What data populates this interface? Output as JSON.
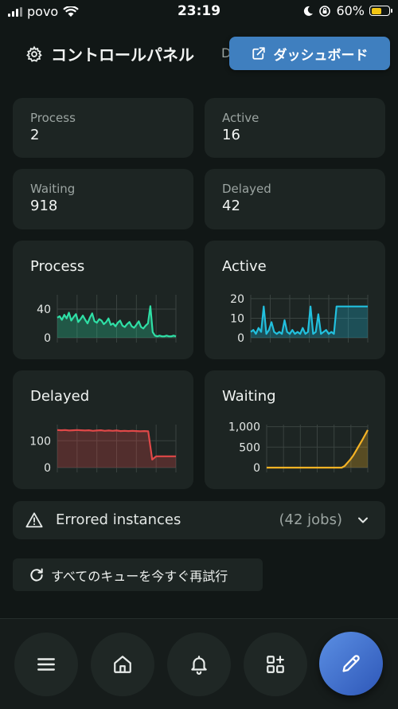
{
  "status_bar": {
    "carrier": "povo",
    "time": "23:19",
    "battery": "60%"
  },
  "header": {
    "title": "コントロールパネル",
    "hidden_tab_initial": "D",
    "dashboard_button": "ダッシュボード"
  },
  "stats": [
    {
      "label": "Process",
      "value": "2"
    },
    {
      "label": "Active",
      "value": "16"
    },
    {
      "label": "Waiting",
      "value": "918"
    },
    {
      "label": "Delayed",
      "value": "42"
    }
  ],
  "charts": {
    "process": {
      "title": "Process",
      "color": "#2fe0a6",
      "yticks": [
        "40",
        "0"
      ]
    },
    "active": {
      "title": "Active",
      "color": "#22c0de",
      "yticks": [
        "20",
        "10",
        "0"
      ]
    },
    "delayed": {
      "title": "Delayed",
      "color": "#e04848",
      "yticks": [
        "100",
        "0"
      ]
    },
    "waiting": {
      "title": "Waiting",
      "color": "#f5b325",
      "yticks": [
        "1,000",
        "500",
        "0"
      ]
    }
  },
  "chart_data": [
    {
      "type": "area",
      "title": "Process",
      "ylim": [
        0,
        60
      ],
      "y_ticks": [
        0,
        40
      ],
      "series": [
        {
          "values": [
            28,
            30,
            25,
            32,
            27,
            35,
            24,
            29,
            33,
            22,
            26,
            31,
            25,
            20,
            28,
            34,
            23,
            21,
            26,
            24,
            19,
            22,
            27,
            18,
            20,
            16,
            21,
            24,
            17,
            15,
            19,
            22,
            16,
            14,
            18,
            23,
            15,
            13,
            17,
            20,
            44,
            8,
            3,
            2,
            3,
            2,
            2,
            3,
            2,
            2,
            3,
            2
          ]
        }
      ]
    },
    {
      "type": "area",
      "title": "Active",
      "ylim": [
        0,
        22
      ],
      "y_ticks": [
        0,
        10,
        20
      ],
      "series": [
        {
          "values": [
            3,
            4,
            2,
            5,
            3,
            16,
            2,
            4,
            8,
            3,
            2,
            3,
            2,
            9,
            3,
            2,
            4,
            2,
            3,
            2,
            5,
            2,
            3,
            16,
            2,
            3,
            12,
            2,
            3,
            4,
            2,
            3,
            2,
            16,
            16,
            16,
            16,
            16,
            16,
            16,
            16,
            16,
            16,
            16,
            16,
            16
          ]
        }
      ]
    },
    {
      "type": "area",
      "title": "Delayed",
      "ylim": [
        0,
        160
      ],
      "y_ticks": [
        0,
        100
      ],
      "series": [
        {
          "values": [
            140,
            139,
            140,
            138,
            139,
            140,
            139,
            138,
            139,
            137,
            138,
            139,
            137,
            138,
            137,
            138,
            136,
            137,
            136,
            137,
            136,
            135,
            136,
            135,
            30,
            42,
            42,
            42,
            42,
            42,
            42
          ]
        }
      ]
    },
    {
      "type": "area",
      "title": "Waiting",
      "ylim": [
        0,
        1050
      ],
      "y_ticks": [
        0,
        500,
        1000
      ],
      "series": [
        {
          "values": [
            0,
            0,
            0,
            0,
            0,
            0,
            0,
            0,
            0,
            0,
            0,
            0,
            0,
            0,
            0,
            0,
            0,
            0,
            0,
            0,
            0,
            0,
            0,
            0,
            0,
            0,
            0,
            40,
            120,
            200,
            300,
            420,
            540,
            660,
            790,
            918
          ]
        }
      ]
    }
  ],
  "errored": {
    "label": "Errored instances",
    "jobs": "(42 jobs)"
  },
  "retry_button": "すべてのキューを今すぐ再試行",
  "nav": [
    "menu-icon",
    "home-icon",
    "bell-icon",
    "apps-icon",
    "pencil-icon"
  ]
}
